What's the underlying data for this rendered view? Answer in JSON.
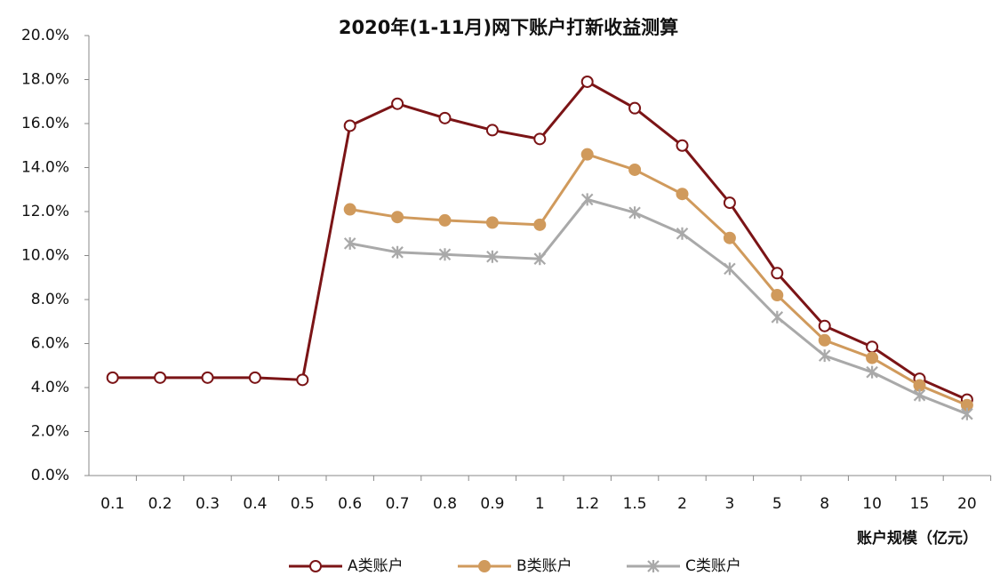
{
  "chart_data": {
    "type": "line",
    "title": "2020年(1-11月)网下账户打新收益测算",
    "x_label": "账户规模（亿元）",
    "categories": [
      "0.1",
      "0.2",
      "0.3",
      "0.4",
      "0.5",
      "0.6",
      "0.7",
      "0.8",
      "0.9",
      "1",
      "1.2",
      "1.5",
      "2",
      "3",
      "5",
      "8",
      "10",
      "15",
      "20"
    ],
    "series": [
      {
        "name": "A类账户",
        "color": "#7b1416",
        "marker": "circle-open",
        "values": [
          4.45,
          4.45,
          4.45,
          4.45,
          4.35,
          15.9,
          16.9,
          16.25,
          15.7,
          15.3,
          17.9,
          16.7,
          15.0,
          12.4,
          9.2,
          6.8,
          5.85,
          4.4,
          3.45
        ]
      },
      {
        "name": "B类账户",
        "color": "#d09a5c",
        "marker": "circle-filled",
        "values": [
          null,
          null,
          null,
          null,
          null,
          12.1,
          11.75,
          11.6,
          11.5,
          11.4,
          14.6,
          13.9,
          12.8,
          10.8,
          8.2,
          6.15,
          5.35,
          4.1,
          3.2
        ]
      },
      {
        "name": "C类账户",
        "color": "#a9a9a9",
        "marker": "asterisk",
        "values": [
          null,
          null,
          null,
          null,
          null,
          10.55,
          10.15,
          10.05,
          9.95,
          9.85,
          12.55,
          11.95,
          11.0,
          9.4,
          7.2,
          5.45,
          4.7,
          3.65,
          2.8
        ]
      }
    ],
    "ylim": [
      0,
      20
    ],
    "yticks": [
      {
        "value": 0,
        "label": "0.0%"
      },
      {
        "value": 2,
        "label": "2.0%"
      },
      {
        "value": 4,
        "label": "4.0%"
      },
      {
        "value": 6,
        "label": "6.0%"
      },
      {
        "value": 8,
        "label": "8.0%"
      },
      {
        "value": 10,
        "label": "10.0%"
      },
      {
        "value": 12,
        "label": "12.0%"
      },
      {
        "value": 14,
        "label": "14.0%"
      },
      {
        "value": 16,
        "label": "16.0%"
      },
      {
        "value": 18,
        "label": "18.0%"
      },
      {
        "value": 20,
        "label": "20.0%"
      }
    ],
    "grid": false,
    "legend": "bottom"
  }
}
